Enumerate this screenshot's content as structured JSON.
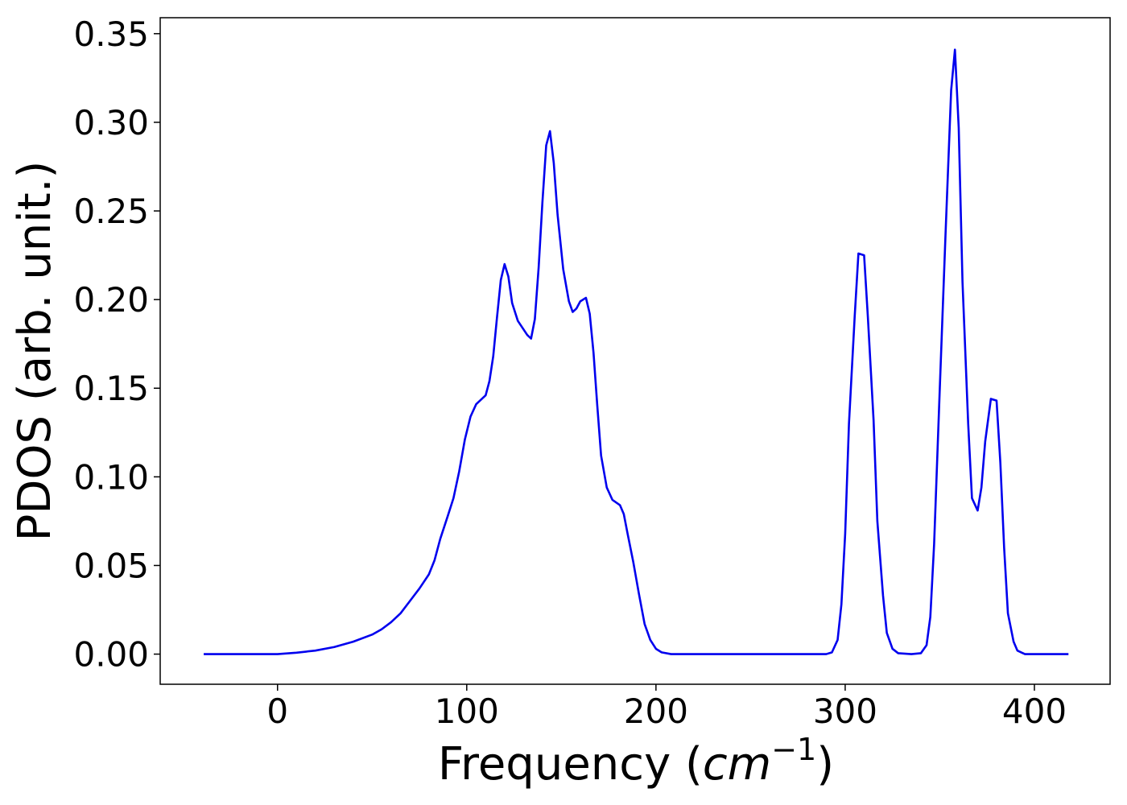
{
  "chart_data": {
    "type": "line",
    "title": "",
    "xlabel": "Frequency (cm⁻¹)",
    "xlabel_parts": {
      "prefix": "Frequency (",
      "unit_base": "cm",
      "unit_exp": "−1",
      "suffix": ")"
    },
    "ylabel": "PDOS (arb. unit.)",
    "xlim": [
      -62,
      440
    ],
    "ylim": [
      -0.017,
      0.359
    ],
    "xticks": [
      0,
      100,
      200,
      300,
      400
    ],
    "xtick_labels": [
      "0",
      "100",
      "200",
      "300",
      "400"
    ],
    "yticks": [
      0.0,
      0.05,
      0.1,
      0.15,
      0.2,
      0.25,
      0.3,
      0.35
    ],
    "ytick_labels": [
      "0.00",
      "0.05",
      "0.10",
      "0.15",
      "0.20",
      "0.25",
      "0.30",
      "0.35"
    ],
    "grid": false,
    "legend": false,
    "series": [
      {
        "color": "#0000ee",
        "points": [
          [
            -39,
            0.0
          ],
          [
            0,
            0.0
          ],
          [
            10,
            0.0008
          ],
          [
            20,
            0.002
          ],
          [
            30,
            0.004
          ],
          [
            40,
            0.007
          ],
          [
            50,
            0.011
          ],
          [
            55,
            0.014
          ],
          [
            60,
            0.018
          ],
          [
            65,
            0.023
          ],
          [
            70,
            0.03
          ],
          [
            75,
            0.037
          ],
          [
            80,
            0.045
          ],
          [
            83,
            0.053
          ],
          [
            86,
            0.065
          ],
          [
            90,
            0.078
          ],
          [
            93,
            0.088
          ],
          [
            96,
            0.103
          ],
          [
            99,
            0.121
          ],
          [
            102,
            0.134
          ],
          [
            105,
            0.141
          ],
          [
            110,
            0.146
          ],
          [
            112,
            0.154
          ],
          [
            114,
            0.168
          ],
          [
            116,
            0.19
          ],
          [
            118,
            0.211
          ],
          [
            120,
            0.22
          ],
          [
            122,
            0.213
          ],
          [
            124,
            0.198
          ],
          [
            127,
            0.188
          ],
          [
            132,
            0.18
          ],
          [
            134,
            0.178
          ],
          [
            136,
            0.189
          ],
          [
            138,
            0.218
          ],
          [
            140,
            0.255
          ],
          [
            142,
            0.287
          ],
          [
            144,
            0.295
          ],
          [
            146,
            0.277
          ],
          [
            148,
            0.248
          ],
          [
            151,
            0.217
          ],
          [
            154,
            0.199
          ],
          [
            156,
            0.193
          ],
          [
            158,
            0.195
          ],
          [
            160,
            0.199
          ],
          [
            163,
            0.201
          ],
          [
            165,
            0.192
          ],
          [
            167,
            0.17
          ],
          [
            169,
            0.14
          ],
          [
            171,
            0.112
          ],
          [
            174,
            0.094
          ],
          [
            177,
            0.087
          ],
          [
            181,
            0.084
          ],
          [
            183,
            0.079
          ],
          [
            185,
            0.068
          ],
          [
            188,
            0.052
          ],
          [
            191,
            0.034
          ],
          [
            194,
            0.017
          ],
          [
            197,
            0.008
          ],
          [
            200,
            0.003
          ],
          [
            203,
            0.001
          ],
          [
            208,
            0.0
          ],
          [
            290,
            0.0
          ],
          [
            293,
            0.001
          ],
          [
            296,
            0.008
          ],
          [
            298,
            0.028
          ],
          [
            300,
            0.068
          ],
          [
            302,
            0.13
          ],
          [
            305,
            0.19
          ],
          [
            307,
            0.226
          ],
          [
            310,
            0.225
          ],
          [
            312,
            0.19
          ],
          [
            315,
            0.132
          ],
          [
            317,
            0.075
          ],
          [
            320,
            0.033
          ],
          [
            322,
            0.012
          ],
          [
            325,
            0.003
          ],
          [
            328,
            0.0005
          ],
          [
            335,
            0.0
          ],
          [
            340,
            0.0005
          ],
          [
            343,
            0.005
          ],
          [
            345,
            0.021
          ],
          [
            347,
            0.062
          ],
          [
            350,
            0.15
          ],
          [
            353,
            0.236
          ],
          [
            356,
            0.318
          ],
          [
            358,
            0.341
          ],
          [
            360,
            0.297
          ],
          [
            362,
            0.21
          ],
          [
            365,
            0.13
          ],
          [
            367,
            0.088
          ],
          [
            370,
            0.081
          ],
          [
            372,
            0.094
          ],
          [
            374,
            0.12
          ],
          [
            377,
            0.144
          ],
          [
            380,
            0.143
          ],
          [
            382,
            0.108
          ],
          [
            384,
            0.06
          ],
          [
            386,
            0.023
          ],
          [
            389,
            0.007
          ],
          [
            391,
            0.002
          ],
          [
            395,
            0.0
          ],
          [
            418,
            0.0
          ]
        ]
      }
    ]
  }
}
